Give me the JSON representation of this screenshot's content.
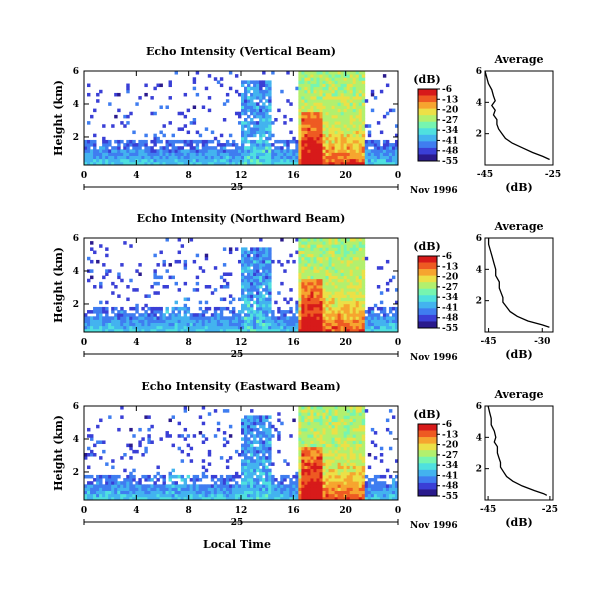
{
  "figure": {
    "xlabel": "Local Time",
    "date_label": "Nov 1996",
    "day_label": "25"
  },
  "colorbar": {
    "unit": "(dB)",
    "ticks": [
      "-6",
      "-13",
      "-20",
      "-27",
      "-34",
      "-41",
      "-48",
      "-55"
    ],
    "colors": [
      "#2a1a8c",
      "#3a3fd6",
      "#3f7df0",
      "#43b3ef",
      "#4fe0df",
      "#76f5b0",
      "#b2f06e",
      "#ece047",
      "#f6a52f",
      "#ee5a22",
      "#d71a1a"
    ]
  },
  "chart_data": [
    {
      "type": "heatmap",
      "title": "Echo Intensity (Vertical Beam)",
      "ylabel": "Height (km)",
      "x_ticks": [
        "0",
        "4",
        "8",
        "12",
        "16",
        "20",
        "0"
      ],
      "y_ticks": [
        "6",
        "4",
        "2"
      ],
      "xlim": [
        0,
        24
      ],
      "ylim": [
        0.3,
        6
      ],
      "colorbar_range_db": [
        -55,
        -6
      ],
      "profile": {
        "title": "Average",
        "xlabel": "(dB)",
        "x_ticks": [
          "-45",
          "-25"
        ],
        "y_ticks": [
          "6",
          "4",
          "2"
        ],
        "xlim": [
          -45,
          -25
        ],
        "ylim": [
          0,
          6
        ],
        "points": [
          [
            -45,
            6.0
          ],
          [
            -44.5,
            5.6
          ],
          [
            -44,
            5.2
          ],
          [
            -43,
            4.8
          ],
          [
            -42.5,
            4.4
          ],
          [
            -42,
            4.1
          ],
          [
            -43,
            3.8
          ],
          [
            -42,
            3.5
          ],
          [
            -42.5,
            3.2
          ],
          [
            -41.5,
            2.9
          ],
          [
            -41.5,
            2.6
          ],
          [
            -41,
            2.3
          ],
          [
            -40,
            2.0
          ],
          [
            -39,
            1.7
          ],
          [
            -37,
            1.4
          ],
          [
            -34,
            1.1
          ],
          [
            -31,
            0.8
          ],
          [
            -28,
            0.55
          ],
          [
            -26,
            0.35
          ]
        ]
      }
    },
    {
      "type": "heatmap",
      "title": "Echo Intensity (Northward Beam)",
      "ylabel": "Height (km)",
      "x_ticks": [
        "0",
        "4",
        "8",
        "12",
        "16",
        "20",
        "0"
      ],
      "y_ticks": [
        "6",
        "4",
        "2"
      ],
      "xlim": [
        0,
        24
      ],
      "ylim": [
        0.3,
        6
      ],
      "colorbar_range_db": [
        -55,
        -6
      ],
      "profile": {
        "title": "Average",
        "xlabel": "(dB)",
        "x_ticks": [
          "-45",
          "-30"
        ],
        "y_ticks": [
          "6",
          "4",
          "2"
        ],
        "xlim": [
          -46,
          -27
        ],
        "ylim": [
          0,
          6
        ],
        "points": [
          [
            -45,
            6.0
          ],
          [
            -45,
            5.6
          ],
          [
            -44.5,
            5.2
          ],
          [
            -44,
            4.8
          ],
          [
            -43.5,
            4.4
          ],
          [
            -43,
            4.0
          ],
          [
            -43,
            3.6
          ],
          [
            -42,
            3.2
          ],
          [
            -42,
            2.8
          ],
          [
            -41.5,
            2.5
          ],
          [
            -41,
            2.2
          ],
          [
            -41,
            1.9
          ],
          [
            -40,
            1.6
          ],
          [
            -39,
            1.3
          ],
          [
            -37,
            1.0
          ],
          [
            -34,
            0.7
          ],
          [
            -30,
            0.45
          ],
          [
            -28,
            0.3
          ]
        ]
      }
    },
    {
      "type": "heatmap",
      "title": "Echo Intensity (Eastward Beam)",
      "ylabel": "Height (km)",
      "x_ticks": [
        "0",
        "4",
        "8",
        "12",
        "16",
        "20",
        "0"
      ],
      "y_ticks": [
        "6",
        "4",
        "2"
      ],
      "xlim": [
        0,
        24
      ],
      "ylim": [
        0.3,
        6
      ],
      "colorbar_range_db": [
        -55,
        -6
      ],
      "profile": {
        "title": "Average",
        "xlabel": "(dB)",
        "x_ticks": [
          "-45",
          "-25"
        ],
        "y_ticks": [
          "6",
          "4",
          "2"
        ],
        "xlim": [
          -46,
          -24
        ],
        "ylim": [
          0,
          6
        ],
        "points": [
          [
            -45,
            6.0
          ],
          [
            -44.5,
            5.6
          ],
          [
            -44,
            5.2
          ],
          [
            -44,
            4.8
          ],
          [
            -43,
            4.4
          ],
          [
            -42.5,
            4.0
          ],
          [
            -43,
            3.7
          ],
          [
            -42,
            3.4
          ],
          [
            -42,
            3.0
          ],
          [
            -41.5,
            2.7
          ],
          [
            -41,
            2.4
          ],
          [
            -41,
            2.1
          ],
          [
            -40,
            1.8
          ],
          [
            -39,
            1.5
          ],
          [
            -37,
            1.2
          ],
          [
            -34,
            0.9
          ],
          [
            -30,
            0.6
          ],
          [
            -27,
            0.4
          ],
          [
            -26,
            0.3
          ]
        ]
      }
    }
  ]
}
